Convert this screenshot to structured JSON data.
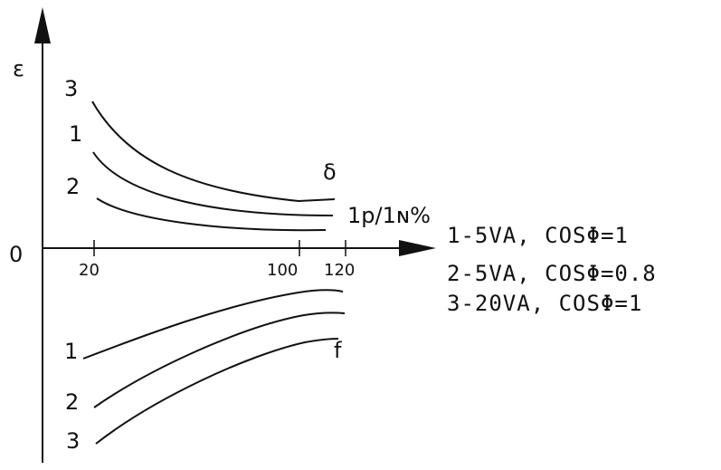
{
  "axes": {
    "y_label": "ε",
    "origin_label": "0",
    "x_unit_label": "1p/1ɴ%",
    "x_ticks": [
      "20",
      "100",
      "120"
    ]
  },
  "curves": {
    "upper_labels": [
      "3",
      "1",
      "2"
    ],
    "upper_group_label": "δ",
    "lower_labels": [
      "1",
      "2",
      "3"
    ],
    "lower_group_label": "f"
  },
  "legend": [
    "1-5VA, COSΦ=1",
    "2-5VA, COSΦ=0.8",
    "3-20VA, COSΦ=1"
  ]
}
